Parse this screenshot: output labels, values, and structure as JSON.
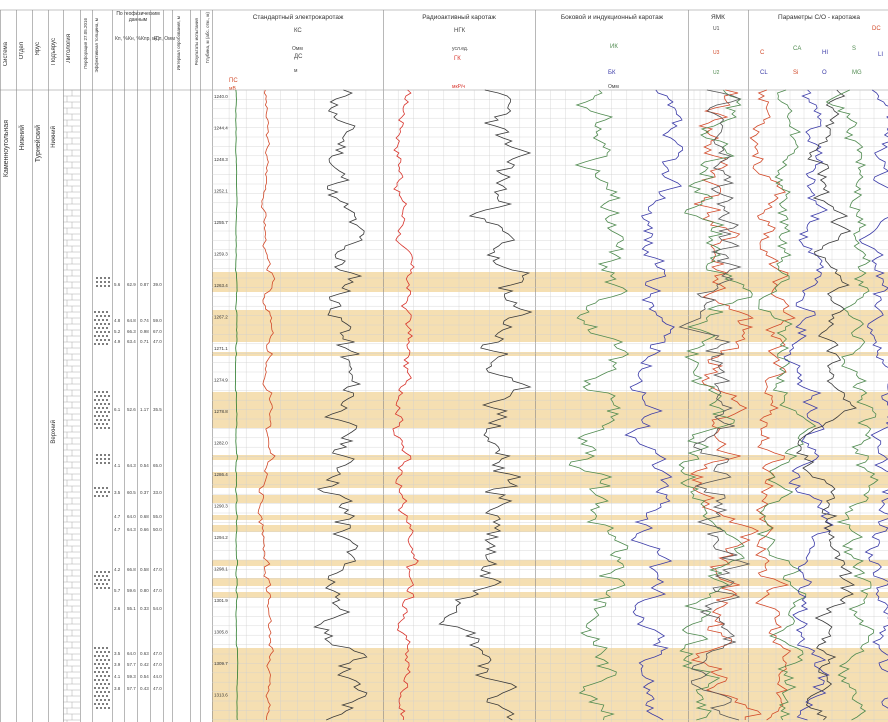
{
  "stratigraphy_headers": {
    "system": "Система",
    "department": "Отдел",
    "stage": "Ярус",
    "substage": "Подъярус",
    "lithology": "Литология",
    "perforation": "Перфорация 27.05.2016",
    "effective_thickness": "Эффективная толщина, м",
    "geophys_data": "По геофизическим данным",
    "kp": "Кп, %",
    "kn": "Кн, %",
    "kpr": "Кпр, мД",
    "rp": "Р п, Омм",
    "test_interval": "Интервал опробования, м",
    "test_results": "Результаты испытания",
    "depth": "Глубина, м (абс. отм., м)"
  },
  "strat_labels": {
    "system": "Каменноугольная",
    "department": "Нижний",
    "stage": "Турнейский",
    "substage_top": "Нижний",
    "substage_bottom": "Верхний"
  },
  "tracks": {
    "std": {
      "title": "Стандартный электрокаротаж",
      "ks": "КС",
      "ks_unit": "Омм",
      "ps": "ПС",
      "ps_unit": "мВ",
      "ds": "ДС",
      "ds_unit": "м"
    },
    "radio": {
      "title": "Радиоактивный каротаж",
      "ngk": "НГК",
      "ngk_unit": "усл.ед.",
      "gk": "ГК",
      "gk_unit": "мкР/ч"
    },
    "lateral": {
      "title": "Боковой и индукционный каротаж",
      "ik": "ИК",
      "bk": "БК",
      "unit": "Омм"
    },
    "yamk": {
      "title": "ЯМК",
      "u1": "U1",
      "u2": "U2",
      "u3": "U3"
    },
    "co": {
      "title": "Параметры С/О - каротажа",
      "c": "C",
      "ca": "CA",
      "hi": "HI",
      "s": "S",
      "li": "LI",
      "cl": "CL",
      "si": "Si",
      "o": "O",
      "mg": "MG",
      "dc": "DC"
    }
  },
  "depths": [
    "1240.0",
    "1244.4",
    "1248.3",
    "1252.1",
    "1255.7",
    "1259.3",
    "1263.4",
    "1267.2",
    "1271.1",
    "1274.9",
    "1278.8",
    "1282.0",
    "1286.4",
    "1290.3",
    "1294.2",
    "1298.1",
    "1301.9",
    "1305.8",
    "1309.7",
    "1313.6"
  ],
  "intervals": [
    {
      "kp": "5.6",
      "kn": "62.9",
      "kpr": "0.87",
      "rp": "39.0"
    },
    {
      "kp": "4.8",
      "kn": "64.8",
      "kpr": "0.74",
      "rp": "59.0"
    },
    {
      "kp": "5.2",
      "kn": "66.3",
      "kpr": "0.98",
      "rp": "67.0"
    },
    {
      "kp": "4.9",
      "kn": "63.4",
      "kpr": "0.71",
      "rp": "47.0"
    },
    {
      "kp": "6.1",
      "kn": "52.6",
      "kpr": "1.17",
      "rp": "35.5"
    },
    {
      "kp": "4.1",
      "kn": "64.3",
      "kpr": "0.54",
      "rp": "65.0"
    },
    {
      "kp": "3.5",
      "kn": "60.5",
      "kpr": "0.37",
      "rp": "33.0"
    },
    {
      "kp": "4.7",
      "kn": "64.0",
      "kpr": "0.68",
      "rp": "55.0"
    },
    {
      "kp": "4.7",
      "kn": "64.3",
      "kpr": "0.66",
      "rp": "50.0"
    },
    {
      "kp": "4.2",
      "kn": "66.8",
      "kpr": "0.58",
      "rp": "47.0"
    },
    {
      "kp": "5.7",
      "kn": "59.6",
      "kpr": "0.80",
      "rp": "47.0"
    },
    {
      "kp": "2.6",
      "kn": "55.1",
      "kpr": "0.33",
      "rp": "54.0"
    },
    {
      "kp": "3.5",
      "kn": "64.0",
      "kpr": "0.63",
      "rp": "47.0"
    },
    {
      "kp": "3.9",
      "kn": "57.7",
      "kpr": "0.42",
      "rp": "47.0"
    },
    {
      "kp": "4.1",
      "kn": "59.3",
      "kpr": "0.54",
      "rp": "44.0"
    },
    {
      "kp": "3.8",
      "kn": "57.7",
      "kpr": "0.43",
      "rp": "47.0"
    }
  ],
  "colors": {
    "sand": "#f5dfb2",
    "ks": "#3a3a3a",
    "ps": "#d24a2a",
    "gk": "#d8342c",
    "bk": "#3b3ba8",
    "ik": "#4f8a4f",
    "grid": "#cfcfcf"
  }
}
